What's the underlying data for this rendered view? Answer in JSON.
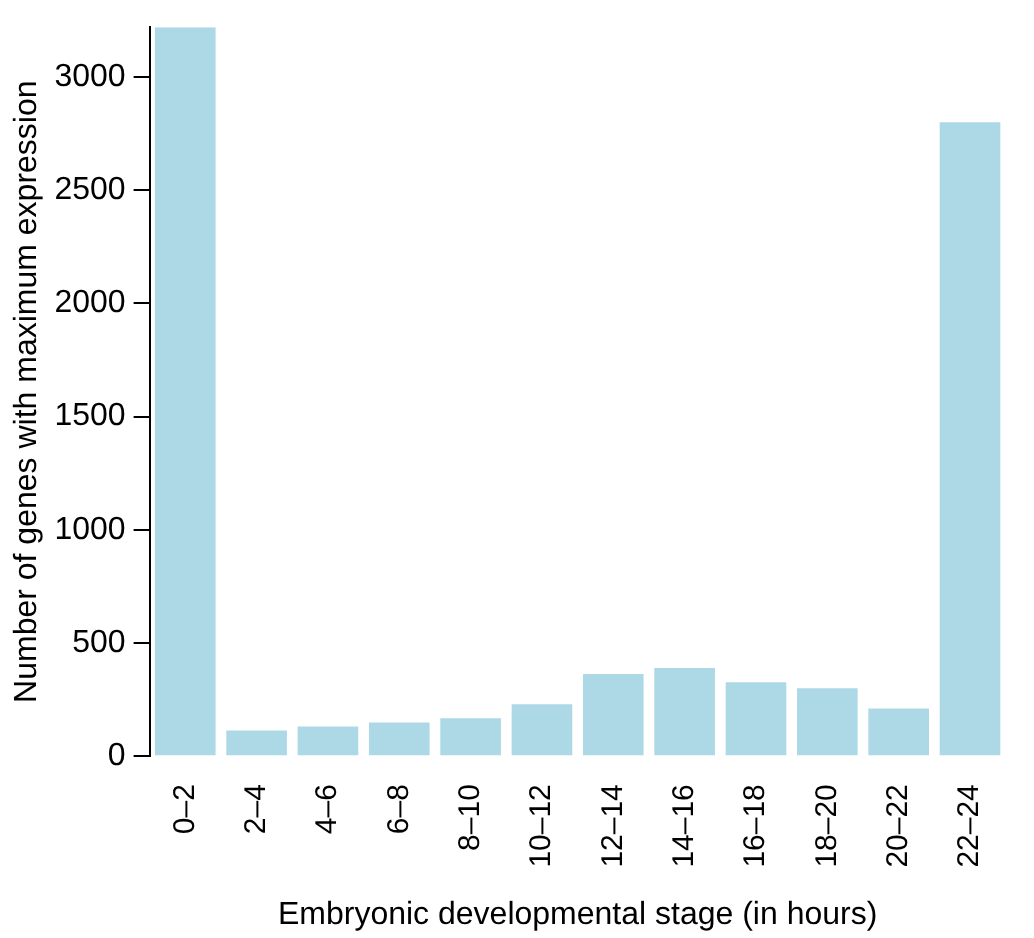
{
  "chart_data": {
    "type": "bar",
    "xlabel": "Embryonic developmental stage (in hours)",
    "ylabel": "Number of genes with maximum expression",
    "categories": [
      "0–2",
      "2–4",
      "4–6",
      "6–8",
      "8–10",
      "10–12",
      "12–14",
      "14–16",
      "16–18",
      "18–20",
      "20–22",
      "22–24"
    ],
    "values": [
      3220,
      113,
      131,
      149,
      167,
      229,
      363,
      390,
      327,
      300,
      211,
      2800
    ],
    "color": "#add8e6",
    "ylim": [
      0,
      3220
    ],
    "yticks": [
      0,
      500,
      1000,
      1500,
      2000,
      2500,
      3000
    ],
    "grid": false,
    "legend": false
  }
}
